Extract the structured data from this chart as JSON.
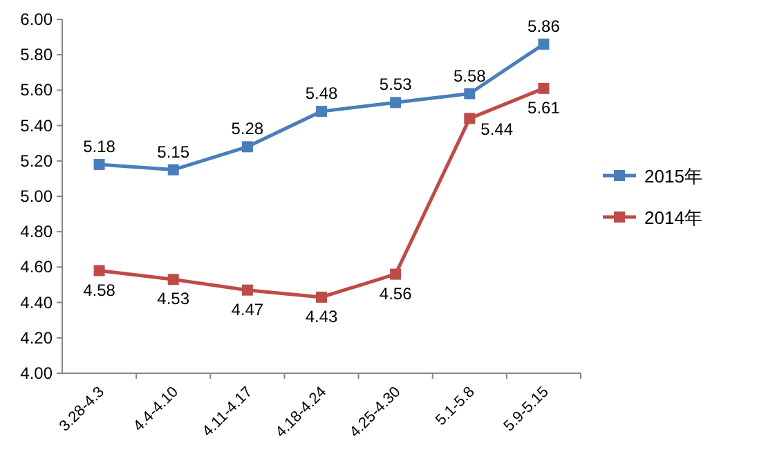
{
  "chart_data": {
    "type": "line",
    "categories": [
      "3.28-4.3",
      "4.4-4.10",
      "4.11-4.17",
      "4.18-4.24",
      "4.25-4.30",
      "5.1-5.8",
      "5.9-5.15"
    ],
    "series": [
      {
        "name": "2015年",
        "color": "#4a7ebb",
        "values": [
          5.18,
          5.15,
          5.28,
          5.48,
          5.53,
          5.58,
          5.86
        ]
      },
      {
        "name": "2014年",
        "color": "#be4b48",
        "values": [
          4.58,
          4.53,
          4.47,
          4.43,
          4.56,
          5.44,
          5.61
        ]
      }
    ],
    "ylim": [
      4,
      6
    ],
    "yticks": [
      {
        "value": 4,
        "label": "4.00"
      },
      {
        "value": 4.2,
        "label": "4.20"
      },
      {
        "value": 4.4,
        "label": "4.40"
      },
      {
        "value": 4.6,
        "label": "4.60"
      },
      {
        "value": 4.8,
        "label": "4.80"
      },
      {
        "value": 5,
        "label": "5.00"
      },
      {
        "value": 5.2,
        "label": "5.20"
      },
      {
        "value": 5.4,
        "label": "5.40"
      },
      {
        "value": 5.6,
        "label": "5.60"
      },
      {
        "value": 5.8,
        "label": "5.80"
      },
      {
        "value": 6,
        "label": "6.00"
      }
    ],
    "marker": "square",
    "data_labels": true,
    "legend": "right"
  }
}
